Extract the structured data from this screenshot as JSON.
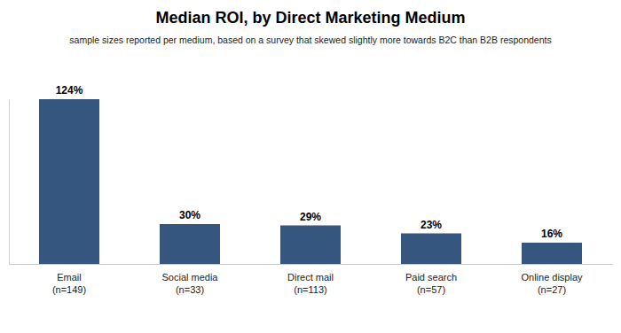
{
  "chart_data": {
    "type": "bar",
    "title": "Median ROI, by Direct Marketing Medium",
    "subtitle": "sample sizes reported per medium, based on a survey that skewed slightly more towards B2C than B2B respondents",
    "categories": [
      [
        "Email",
        "(n=149)"
      ],
      [
        "Social media",
        "(n=33)"
      ],
      [
        "Direct mail",
        "(n=113)"
      ],
      [
        "Paid search",
        "(n=57)"
      ],
      [
        "Online display",
        "(n=27)"
      ]
    ],
    "values": [
      124,
      30,
      29,
      23,
      16
    ],
    "value_labels": [
      "124%",
      "30%",
      "29%",
      "23%",
      "16%"
    ],
    "color": "#34567f",
    "ylim": [
      0,
      124
    ],
    "grid": false,
    "data_labels": true,
    "tick_labels": "x"
  }
}
